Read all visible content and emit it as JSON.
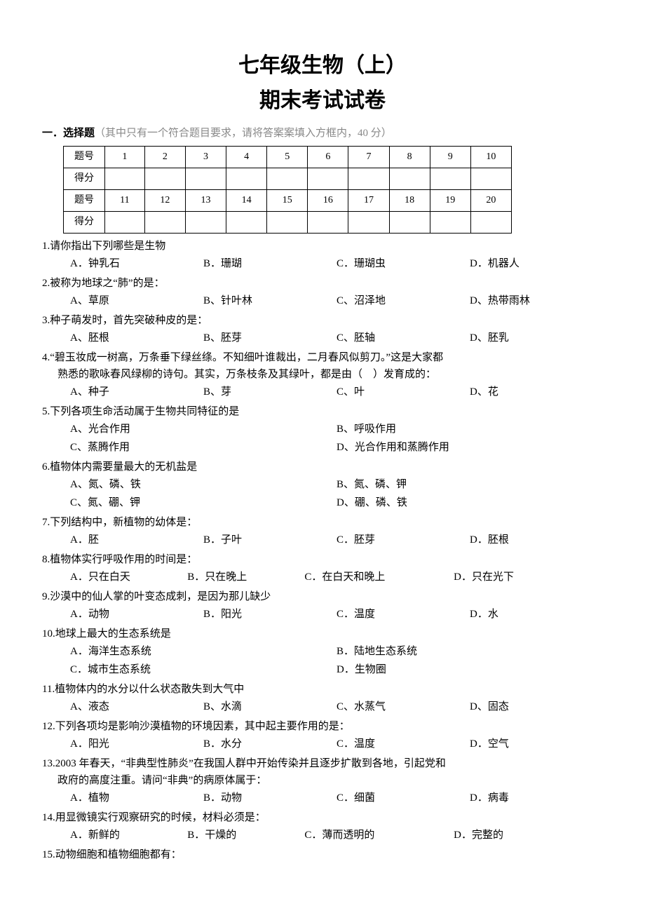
{
  "title": "七年级生物（上）",
  "subtitle": "期末考试试卷",
  "section1": {
    "prefix": "一．",
    "name": "选择题",
    "note": "（其中只有一个符合题目要求，请将答案案填入方框内，40 分）"
  },
  "scoreTable": {
    "labelQ": "题号",
    "labelS": "得分",
    "row1": [
      "1",
      "2",
      "3",
      "4",
      "5",
      "6",
      "7",
      "8",
      "9",
      "10"
    ],
    "row2": [
      "11",
      "12",
      "13",
      "14",
      "15",
      "16",
      "17",
      "18",
      "19",
      "20"
    ]
  },
  "q1": {
    "text": "1.请你指出下列哪些是生物",
    "a": "A．钟乳石",
    "b": "B．珊瑚",
    "c": "C．珊瑚虫",
    "d": "D．机器人"
  },
  "q2": {
    "text": "2.被称为地球之“肺”的是：",
    "a": "A、草原",
    "b": "B、针叶林",
    "c": "C、沼泽地",
    "d": "D、热带雨林"
  },
  "q3": {
    "text": "3.种子萌发时，首先突破种皮的是：",
    "a": "A、胚根",
    "b": "B、胚芽",
    "c": "C、胚轴",
    "d": "D、胚乳"
  },
  "q4": {
    "text1": "4.“碧玉妆成一树高，万条垂下绿丝绦。不知细叶谁裁出，二月春风似剪刀。”这是大家都",
    "text2": "熟悉的歌咏春风绿柳的诗句。其实，万条枝条及其绿叶，都是由（　）发育成的：",
    "a": "A、种子",
    "b": "B、芽",
    "c": "C、叶",
    "d": "D、花"
  },
  "q5": {
    "text": "5.下列各项生命活动属于生物共同特征的是",
    "a": "A、光合作用",
    "b": "B、呼吸作用",
    "c": "C、蒸腾作用",
    "d": "D、光合作用和蒸腾作用"
  },
  "q6": {
    "text": "6.植物体内需要量最大的无机盐是",
    "a": "A、氮、磷、铁",
    "b": "B、氮、磷、钾",
    "c": "C、氮、硼、钾",
    "d": "D、硼、磷、铁"
  },
  "q7": {
    "text": "7.下列结构中，新植物的幼体是：",
    "a": "A．胚",
    "b": "B．子叶",
    "c": "C．胚芽",
    "d": "D．胚根"
  },
  "q8": {
    "text": "8.植物体实行呼吸作用的时间是：",
    "a": "A．只在白天",
    "b": "B．只在晚上",
    "c": "C．在白天和晚上",
    "d": "D．只在光下"
  },
  "q9": {
    "text": "9.沙漠中的仙人掌的叶变态成刺，是因为那儿缺少",
    "a": "A．动物",
    "b": "B．阳光",
    "c": "C．温度",
    "d": "D．水"
  },
  "q10": {
    "text": "10.地球上最大的生态系统是",
    "a": "A．海洋生态系统",
    "b": "B．陆地生态系统",
    "c": "C．城市生态系统",
    "d": "D．生物圈"
  },
  "q11": {
    "text": "11.植物体内的水分以什么状态散失到大气中",
    "a": "A、液态",
    "b": "B、水滴",
    "c": "C、水蒸气",
    "d": "D、固态"
  },
  "q12": {
    "text": "12.下列各项均是影响沙漠植物的环境因素，其中起主要作用的是：",
    "a": "A．阳光",
    "b": "B．水分",
    "c": "C．温度",
    "d": "D．空气"
  },
  "q13": {
    "text1": "13.2003 年春天，“非典型性肺炎”在我国人群中开始传染并且逐步扩散到各地，引起党和",
    "text2": "政府的高度注重。请问“非典”的病原体属于：",
    "a": "A．植物",
    "b": "B．动物",
    "c": "C．细菌",
    "d": "D．病毒"
  },
  "q14": {
    "text": "14.用显微镜实行观察研究的时候，材料必须是：",
    "a": "A．新鲜的",
    "b": "B．干燥的",
    "c": "C．薄而透明的",
    "d": "D．完整的"
  },
  "q15": {
    "text": "15.动物细胞和植物细胞都有："
  }
}
